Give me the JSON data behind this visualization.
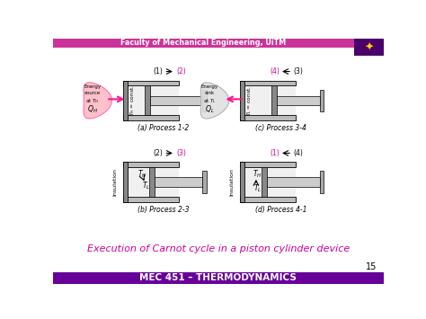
{
  "title": "Faculty of Mechanical Engineering, UiTM",
  "footer": "MEC 451 – THERMODYNAMICS",
  "main_text": "Execution of Carnot cycle in a piston cylinder device",
  "page_number": "15",
  "header_bg": "#CC3399",
  "footer_bg": "#660099",
  "magenta_color": "#CC0099",
  "black": "#000000",
  "pink_blob_color": "#FFB6C1",
  "gray_blob_color": "#E0E0E0",
  "cyl_wall_color": "#BBBBBB",
  "cyl_inner_color": "#E8E8E8",
  "piston_color": "#888888",
  "rod_color": "#CCCCCC",
  "cap_color": "#AAAAAA"
}
